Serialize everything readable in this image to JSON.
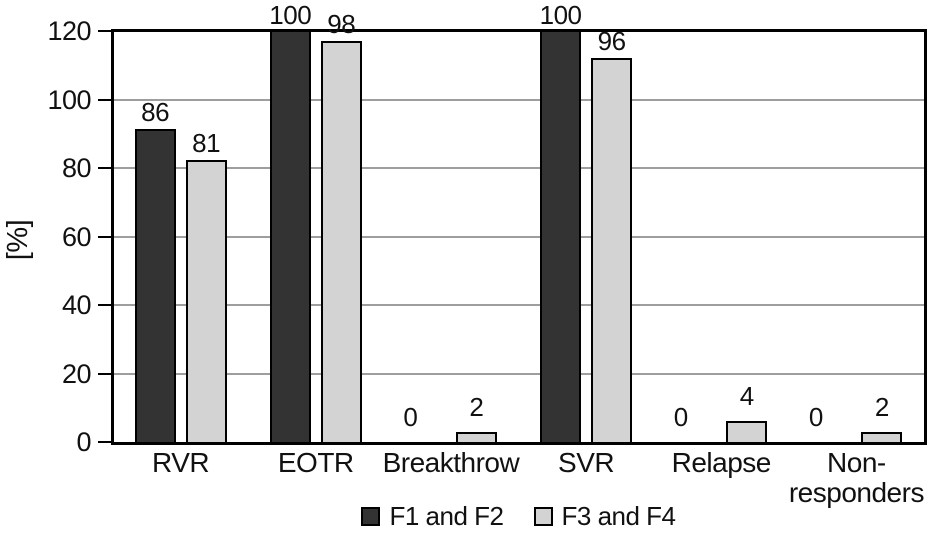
{
  "chart_data": {
    "type": "bar",
    "title": "",
    "ylabel": "[%]",
    "xlabel": "",
    "categories": [
      "RVR",
      "EOTR",
      "Breakthrow",
      "SVR",
      "Relapse",
      "Non-\nresponders"
    ],
    "series": [
      {
        "name": "F1 and F2",
        "color": "#333333",
        "values": [
          86,
          100,
          0,
          100,
          0,
          0
        ],
        "drawn_heights": [
          91.5,
          122,
          0,
          122,
          0,
          0
        ]
      },
      {
        "name": "F3 and F4",
        "color": "#d3d3d3",
        "values": [
          81,
          98,
          2,
          96,
          4,
          2
        ],
        "drawn_heights": [
          82.3,
          117,
          3,
          112,
          6,
          3
        ]
      }
    ],
    "ylim": [
      0,
      120
    ],
    "yticks": [
      0,
      20,
      40,
      60,
      80,
      100,
      120
    ],
    "grid": true,
    "legend_position": "bottom",
    "colors": {
      "bar_outline": "#000000",
      "gridline": "#9e9e9e",
      "axis": "#000000",
      "text": "#111111",
      "background": "#ffffff"
    }
  }
}
